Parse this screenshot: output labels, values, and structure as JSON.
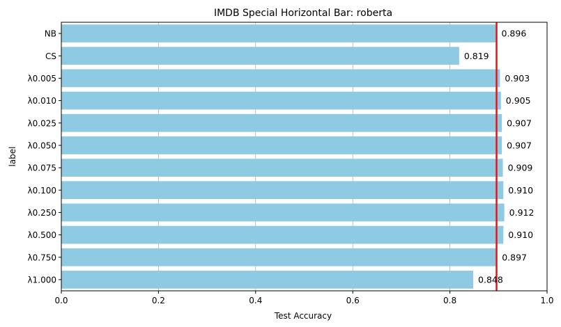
{
  "chart_data": {
    "type": "bar",
    "orientation": "horizontal",
    "title": "IMDB Special Horizontal Bar: roberta",
    "xlabel": "Test Accuracy",
    "ylabel": "label",
    "xlim": [
      0.0,
      1.0
    ],
    "xticks": [
      "0.0",
      "0.2",
      "0.4",
      "0.6",
      "0.8",
      "1.0"
    ],
    "grid": "x",
    "bar_color": "#8ecae2",
    "reference_line": {
      "value": 0.896,
      "color": "#ee1111"
    },
    "categories": [
      "NB",
      "CS",
      "λ0.005",
      "λ0.010",
      "λ0.025",
      "λ0.050",
      "λ0.075",
      "λ0.100",
      "λ0.250",
      "λ0.500",
      "λ0.750",
      "λ1.000"
    ],
    "values": [
      0.896,
      0.819,
      0.903,
      0.905,
      0.907,
      0.907,
      0.909,
      0.91,
      0.912,
      0.91,
      0.897,
      0.848
    ],
    "value_labels": [
      "0.896",
      "0.819",
      "0.903",
      "0.905",
      "0.907",
      "0.907",
      "0.909",
      "0.910",
      "0.912",
      "0.910",
      "0.897",
      "0.848"
    ]
  }
}
